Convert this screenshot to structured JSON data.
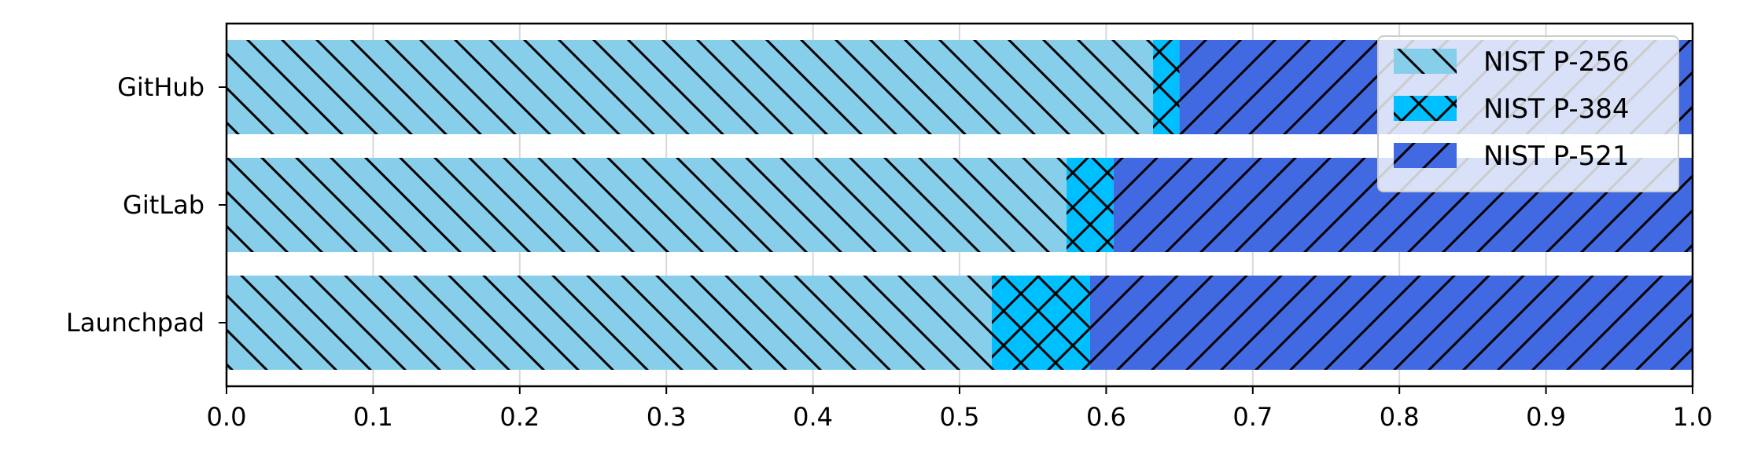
{
  "chart_data": {
    "type": "bar",
    "orientation": "horizontal",
    "stacked": true,
    "categories": [
      "GitHub",
      "GitLab",
      "Launchpad"
    ],
    "series": [
      {
        "name": "NIST P-256",
        "values": [
          0.632,
          0.573,
          0.522
        ],
        "color": "#87CEEB",
        "hatch": "backslash"
      },
      {
        "name": "NIST P-384",
        "values": [
          0.018,
          0.032,
          0.067
        ],
        "color": "#00BFFF",
        "hatch": "cross"
      },
      {
        "name": "NIST P-521",
        "values": [
          0.35,
          0.395,
          0.411
        ],
        "color": "#4169E1",
        "hatch": "slash"
      }
    ],
    "xlim": [
      0.0,
      1.0
    ],
    "xticks": [
      "0.0",
      "0.1",
      "0.2",
      "0.3",
      "0.4",
      "0.5",
      "0.6",
      "0.7",
      "0.8",
      "0.9",
      "1.0"
    ],
    "grid": "x",
    "legend": "upper right"
  }
}
